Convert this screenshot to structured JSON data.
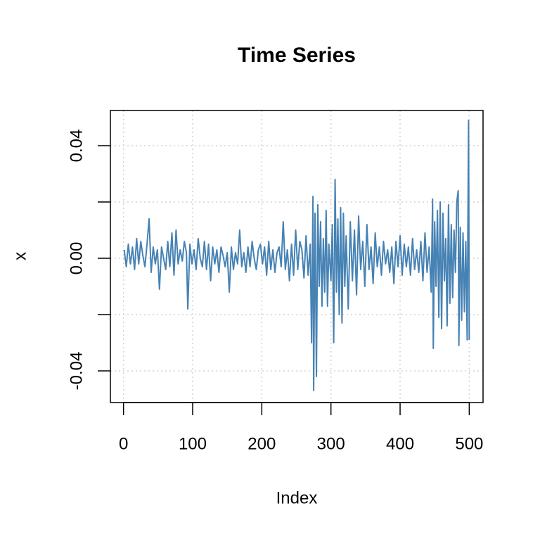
{
  "chart_data": {
    "type": "line",
    "title": "Time Series",
    "x_label": "Index",
    "y_label": "x",
    "grid": true,
    "xlim": [
      -18.96,
      519.96
    ],
    "ylim": [
      -0.05125,
      0.0525
    ],
    "xticks": [
      0,
      100,
      200,
      300,
      400,
      500
    ],
    "yticks": [
      {
        "value": -0.04,
        "label": "-0.04"
      },
      {
        "value": -0.02,
        "label": null
      },
      {
        "value": 0,
        "label": "0.00"
      },
      {
        "value": 0.02,
        "label": null
      },
      {
        "value": 0.04,
        "label": "0.04"
      }
    ],
    "series": [
      {
        "color": "#4682b4",
        "x": [
          1,
          4,
          7,
          10,
          13,
          16,
          19,
          22,
          25,
          28,
          31,
          34,
          37,
          40,
          43,
          46,
          49,
          52,
          55,
          58,
          61,
          64,
          67,
          70,
          73,
          76,
          79,
          82,
          85,
          88,
          91,
          93,
          96,
          99,
          102,
          105,
          108,
          111,
          114,
          117,
          120,
          123,
          126,
          129,
          132,
          135,
          138,
          141,
          144,
          147,
          150,
          153,
          156,
          159,
          162,
          165,
          168,
          171,
          174,
          177,
          180,
          183,
          186,
          189,
          192,
          195,
          198,
          201,
          204,
          207,
          210,
          213,
          216,
          219,
          222,
          225,
          228,
          231,
          234,
          237,
          240,
          243,
          246,
          249,
          252,
          255,
          258,
          261,
          264,
          267,
          270,
          272,
          274,
          275,
          277,
          279,
          281,
          283,
          285,
          287,
          289,
          291,
          293,
          295,
          297,
          300,
          302,
          304,
          306,
          308,
          310,
          312,
          314,
          316,
          318,
          320,
          322,
          325,
          328,
          331,
          334,
          337,
          340,
          343,
          346,
          349,
          352,
          355,
          358,
          361,
          364,
          367,
          370,
          373,
          376,
          379,
          382,
          385,
          388,
          391,
          394,
          397,
          400,
          403,
          406,
          409,
          412,
          415,
          418,
          421,
          424,
          427,
          430,
          433,
          436,
          439,
          442,
          445,
          447,
          448,
          450,
          452,
          454,
          456,
          458,
          460,
          462,
          464,
          466,
          468,
          470,
          472,
          474,
          476,
          478,
          480,
          482,
          484,
          485,
          487,
          489,
          491,
          493,
          495,
          497,
          499,
          500
        ],
        "values": [
          0.003,
          -0.003,
          0.005,
          -0.002,
          0.004,
          -0.004,
          0.007,
          -0.002,
          0.006,
          0.001,
          -0.003,
          0.005,
          0.014,
          -0.005,
          0.004,
          -0.002,
          0.003,
          -0.011,
          0.004,
          0.0,
          -0.004,
          0.006,
          -0.003,
          0.009,
          -0.006,
          0.01,
          -0.002,
          0.003,
          -0.001,
          0.006,
          0.002,
          -0.018,
          0.005,
          -0.002,
          0.003,
          -0.004,
          0.007,
          0.0,
          -0.003,
          0.006,
          -0.004,
          0.005,
          -0.008,
          0.004,
          -0.002,
          0.003,
          -0.005,
          0.004,
          0.001,
          -0.003,
          0.002,
          -0.012,
          0.004,
          -0.004,
          0.002,
          -0.002,
          0.01,
          -0.003,
          0.002,
          -0.005,
          0.004,
          -0.003,
          0.006,
          0.0,
          -0.004,
          0.003,
          0.005,
          -0.002,
          0.004,
          -0.006,
          0.006,
          -0.004,
          0.003,
          -0.005,
          0.002,
          0.004,
          -0.003,
          0.013,
          -0.004,
          0.003,
          -0.008,
          0.005,
          -0.006,
          0.01,
          -0.004,
          0.006,
          0.003,
          -0.007,
          0.008,
          -0.006,
          0.005,
          -0.03,
          0.022,
          -0.047,
          0.016,
          -0.042,
          0.019,
          -0.01,
          0.013,
          -0.017,
          0.007,
          -0.012,
          0.017,
          -0.017,
          0.005,
          -0.008,
          0.012,
          -0.03,
          0.028,
          -0.012,
          0.014,
          -0.02,
          0.018,
          -0.023,
          0.016,
          -0.01,
          0.008,
          -0.018,
          0.013,
          -0.008,
          0.01,
          -0.013,
          0.015,
          -0.004,
          0.006,
          -0.01,
          0.012,
          -0.004,
          0.004,
          -0.009,
          0.009,
          -0.003,
          0.004,
          -0.006,
          0.006,
          -0.002,
          0.003,
          -0.005,
          0.004,
          -0.009,
          0.006,
          -0.003,
          0.008,
          -0.006,
          0.005,
          -0.003,
          0.004,
          -0.006,
          0.007,
          -0.004,
          0.003,
          -0.005,
          0.006,
          -0.008,
          0.009,
          -0.005,
          0.004,
          -0.012,
          0.021,
          -0.032,
          0.013,
          -0.01,
          0.017,
          -0.021,
          0.02,
          -0.025,
          0.016,
          -0.008,
          0.007,
          -0.024,
          0.019,
          -0.016,
          0.012,
          -0.014,
          0.01,
          -0.005,
          0.02,
          0.024,
          -0.031,
          0.011,
          -0.022,
          0.009,
          -0.019,
          0.006,
          -0.029,
          0.049,
          -0.029
        ]
      }
    ]
  }
}
